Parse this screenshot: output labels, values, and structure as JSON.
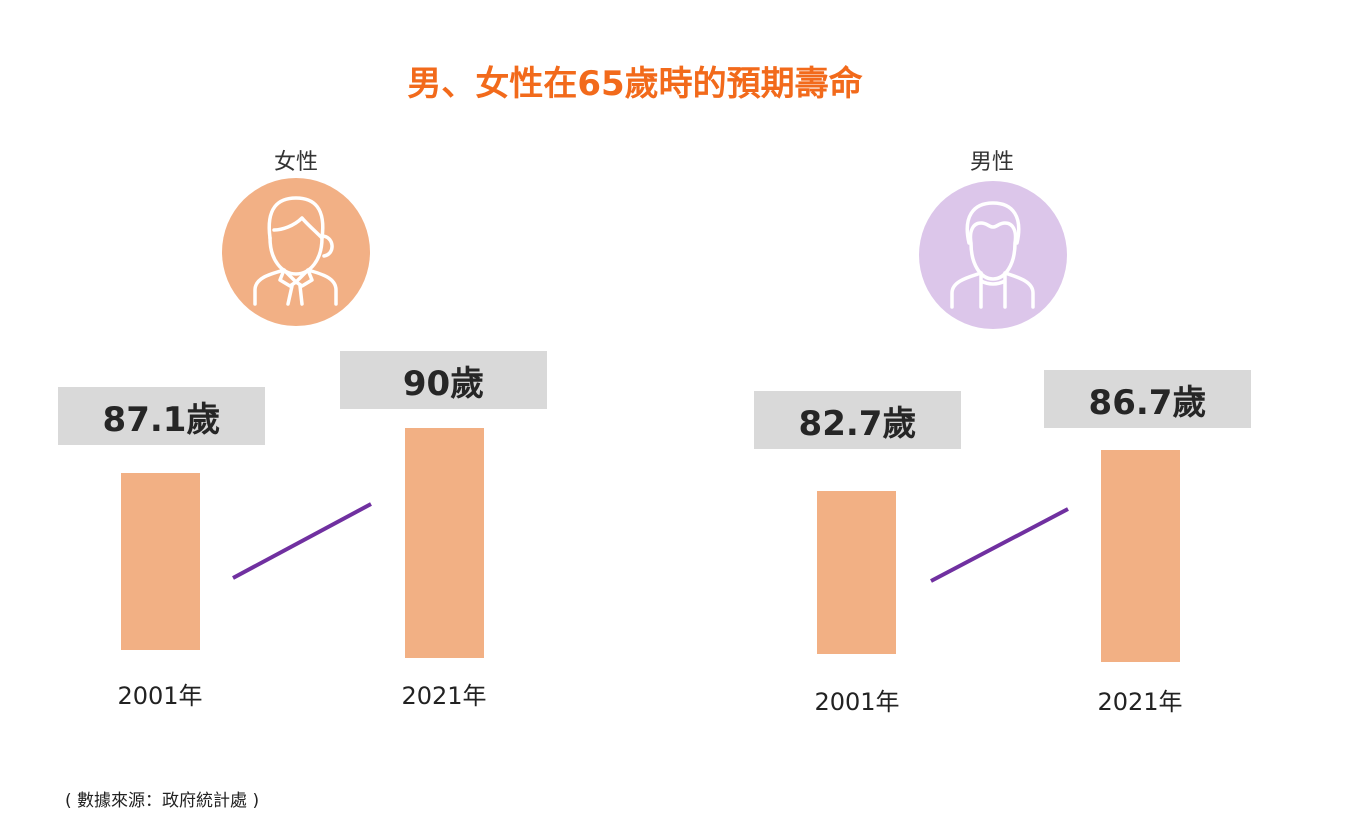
{
  "title": "男、女性在65歲時的預期壽命",
  "source": "( 數據來源：政府統計處 )",
  "colors": {
    "title": "#F26A1B",
    "female_circle": "#F2B085",
    "male_circle": "#DCC6EA",
    "bar": "#F2B084",
    "trend_line": "#7030A0",
    "label_box": "#D9D9D9"
  },
  "chart_data": {
    "type": "bar",
    "title": "男、女性在65歲時的預期壽命",
    "categories": [
      "2001年",
      "2021年"
    ],
    "series": [
      {
        "name": "女性",
        "values": [
          87.1,
          90
        ],
        "labels": [
          "87.1歲",
          "90歲"
        ],
        "icon": "female-person-icon"
      },
      {
        "name": "男性",
        "values": [
          82.7,
          86.7
        ],
        "labels": [
          "82.7歲",
          "86.7歲"
        ],
        "icon": "male-person-icon"
      }
    ],
    "unit": "歲"
  }
}
